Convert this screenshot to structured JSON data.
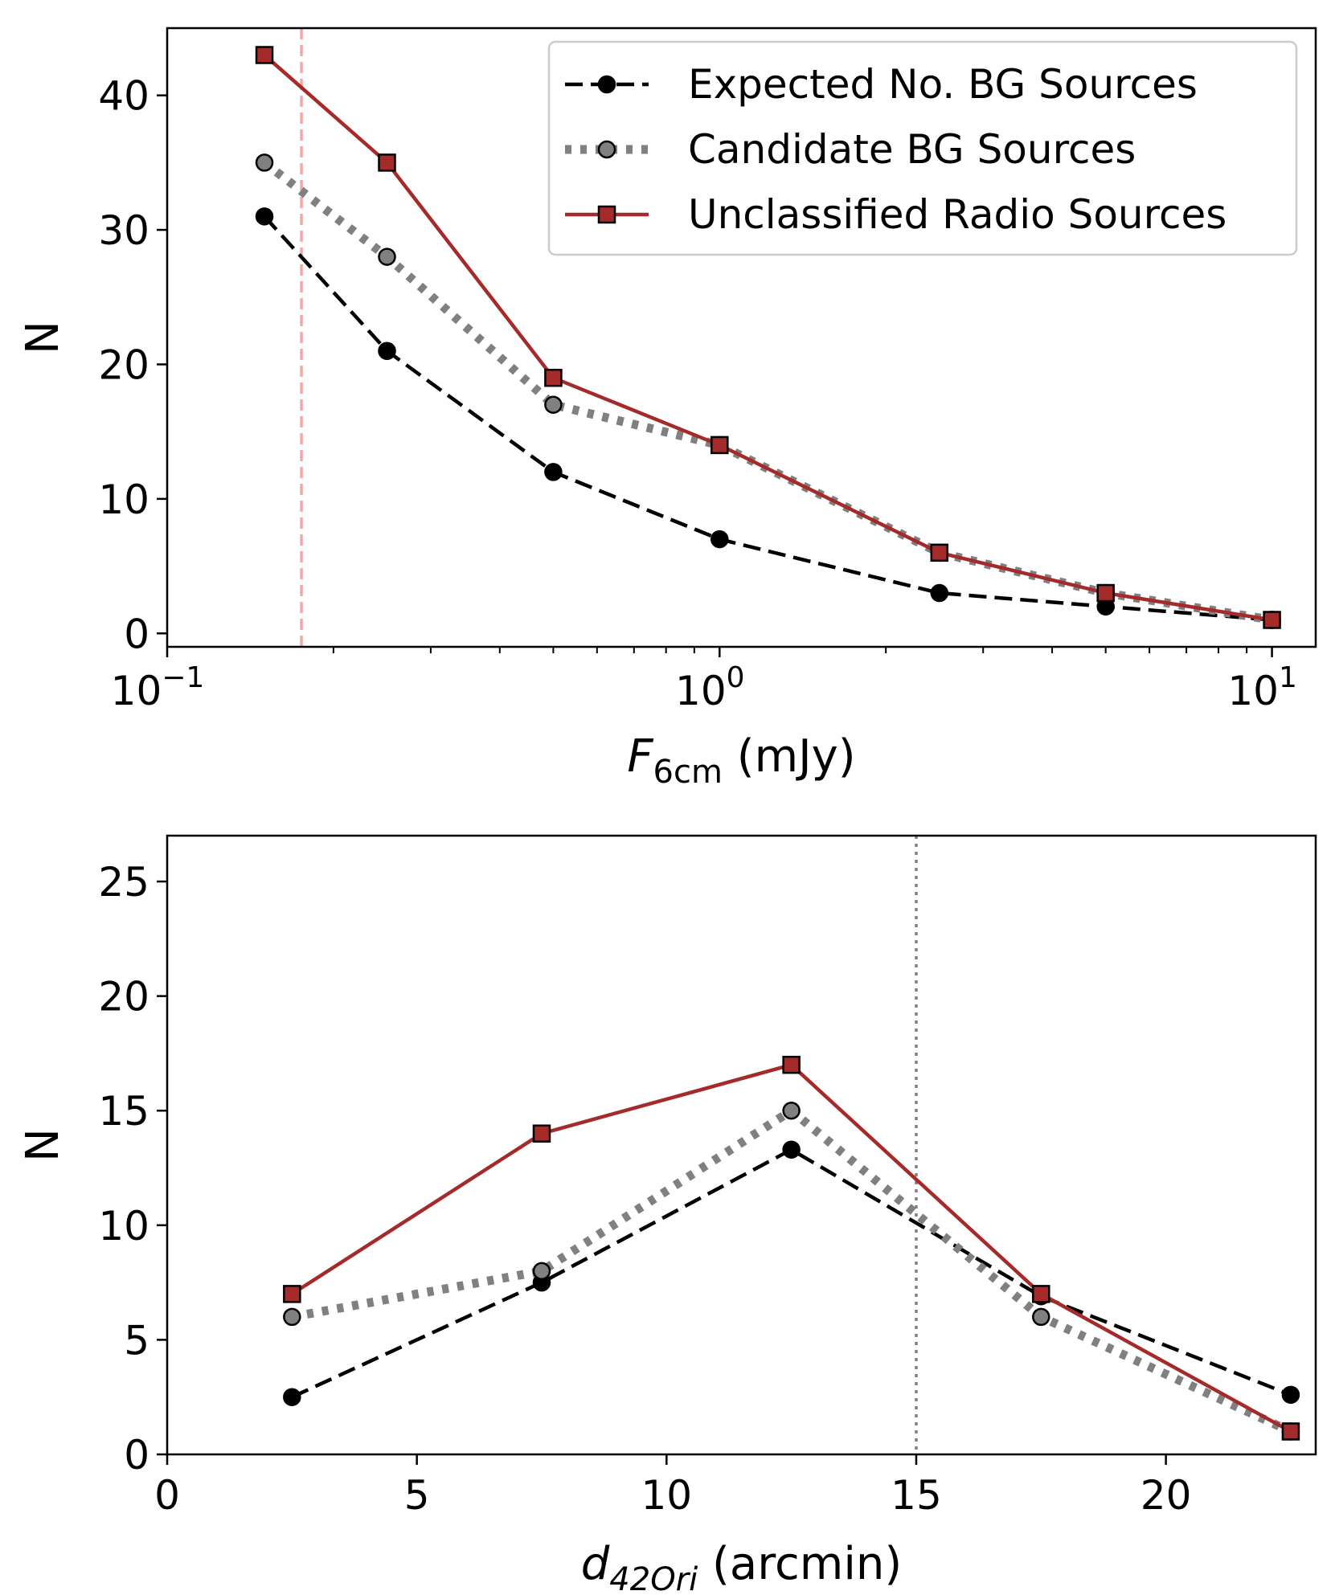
{
  "chart_data": [
    {
      "type": "line",
      "xscale": "log",
      "xlim": [
        0.1,
        12
      ],
      "ylim": [
        -1,
        45
      ],
      "x": [
        0.15,
        0.25,
        0.5,
        1.0,
        2.5,
        5.0,
        10.0
      ],
      "xticks": [
        {
          "base": "10",
          "exp": "−1",
          "value": 0.1
        },
        {
          "base": "10",
          "exp": "0",
          "value": 1
        },
        {
          "base": "10",
          "exp": "1",
          "value": 10
        }
      ],
      "yticks": [
        0,
        10,
        20,
        30,
        40
      ],
      "xlabel": {
        "symbol": "F",
        "subscript": "6cm",
        "unit": " (mJy)"
      },
      "ylabel": "N",
      "vline": {
        "x": 0.175,
        "color": "#f4a7a7",
        "style": "dashed"
      },
      "legend_position": "upper right",
      "series": [
        {
          "name": "Expected No. BG Sources",
          "style": "dashed",
          "color": "#000000",
          "marker": "circle",
          "marker_fill": "#000000",
          "values": [
            31,
            21,
            12,
            7,
            3,
            2,
            1
          ]
        },
        {
          "name": "Candidate BG Sources",
          "style": "dotted",
          "color": "#808080",
          "marker": "circle",
          "marker_fill": "#808080",
          "values": [
            35,
            28,
            17,
            14,
            6,
            3,
            1
          ]
        },
        {
          "name": "Unclassified Radio Sources",
          "style": "solid",
          "color": "#a52a2a",
          "marker": "square",
          "marker_fill": "#a52a2a",
          "values": [
            43,
            35,
            19,
            14,
            6,
            3,
            1
          ]
        }
      ]
    },
    {
      "type": "line",
      "xscale": "linear",
      "xlim": [
        0,
        23
      ],
      "ylim": [
        0,
        27
      ],
      "x": [
        2.5,
        7.5,
        12.5,
        17.5,
        22.5
      ],
      "xticks": [
        0,
        5,
        10,
        15,
        20
      ],
      "yticks": [
        0,
        5,
        10,
        15,
        20,
        25
      ],
      "xlabel": {
        "symbol": "d",
        "subscript": "42Ori",
        "unit": " (arcmin)"
      },
      "ylabel": "N",
      "vline": {
        "x": 15,
        "color": "#808080",
        "style": "dotted"
      },
      "series": [
        {
          "name": "Expected No. BG Sources",
          "style": "dashed",
          "color": "#000000",
          "marker": "circle",
          "marker_fill": "#000000",
          "values": [
            2.5,
            7.5,
            13.3,
            6.9,
            2.6
          ]
        },
        {
          "name": "Candidate BG Sources",
          "style": "dotted",
          "color": "#808080",
          "marker": "circle",
          "marker_fill": "#808080",
          "values": [
            6,
            8,
            15,
            6,
            1
          ]
        },
        {
          "name": "Unclassified Radio Sources",
          "style": "solid",
          "color": "#a52a2a",
          "marker": "square",
          "marker_fill": "#a52a2a",
          "values": [
            7,
            14,
            17,
            7,
            1
          ]
        }
      ]
    }
  ]
}
